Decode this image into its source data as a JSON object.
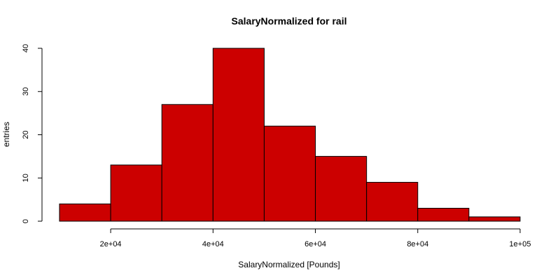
{
  "chart_data": {
    "type": "bar",
    "title": "SalaryNormalized for rail",
    "xlabel": "SalaryNormalized [Pounds]",
    "ylabel": "entries",
    "bins": [
      {
        "x0": 10000,
        "x1": 20000,
        "count": 4
      },
      {
        "x0": 20000,
        "x1": 30000,
        "count": 13
      },
      {
        "x0": 30000,
        "x1": 40000,
        "count": 27
      },
      {
        "x0": 40000,
        "x1": 50000,
        "count": 40
      },
      {
        "x0": 50000,
        "x1": 60000,
        "count": 22
      },
      {
        "x0": 60000,
        "x1": 70000,
        "count": 15
      },
      {
        "x0": 70000,
        "x1": 80000,
        "count": 9
      },
      {
        "x0": 80000,
        "x1": 90000,
        "count": 3
      },
      {
        "x0": 90000,
        "x1": 100000,
        "count": 1
      }
    ],
    "xlim": [
      10000,
      100000
    ],
    "ylim": [
      0,
      40
    ],
    "x_ticks": [
      {
        "value": 20000,
        "label": "2e+04"
      },
      {
        "value": 40000,
        "label": "4e+04"
      },
      {
        "value": 60000,
        "label": "6e+04"
      },
      {
        "value": 80000,
        "label": "8e+04"
      },
      {
        "value": 100000,
        "label": "1e+05"
      }
    ],
    "y_ticks": [
      {
        "value": 0,
        "label": "0"
      },
      {
        "value": 10,
        "label": "10"
      },
      {
        "value": 20,
        "label": "20"
      },
      {
        "value": 30,
        "label": "30"
      },
      {
        "value": 40,
        "label": "40"
      }
    ],
    "grid": false,
    "bar_color": "#cc0000"
  }
}
